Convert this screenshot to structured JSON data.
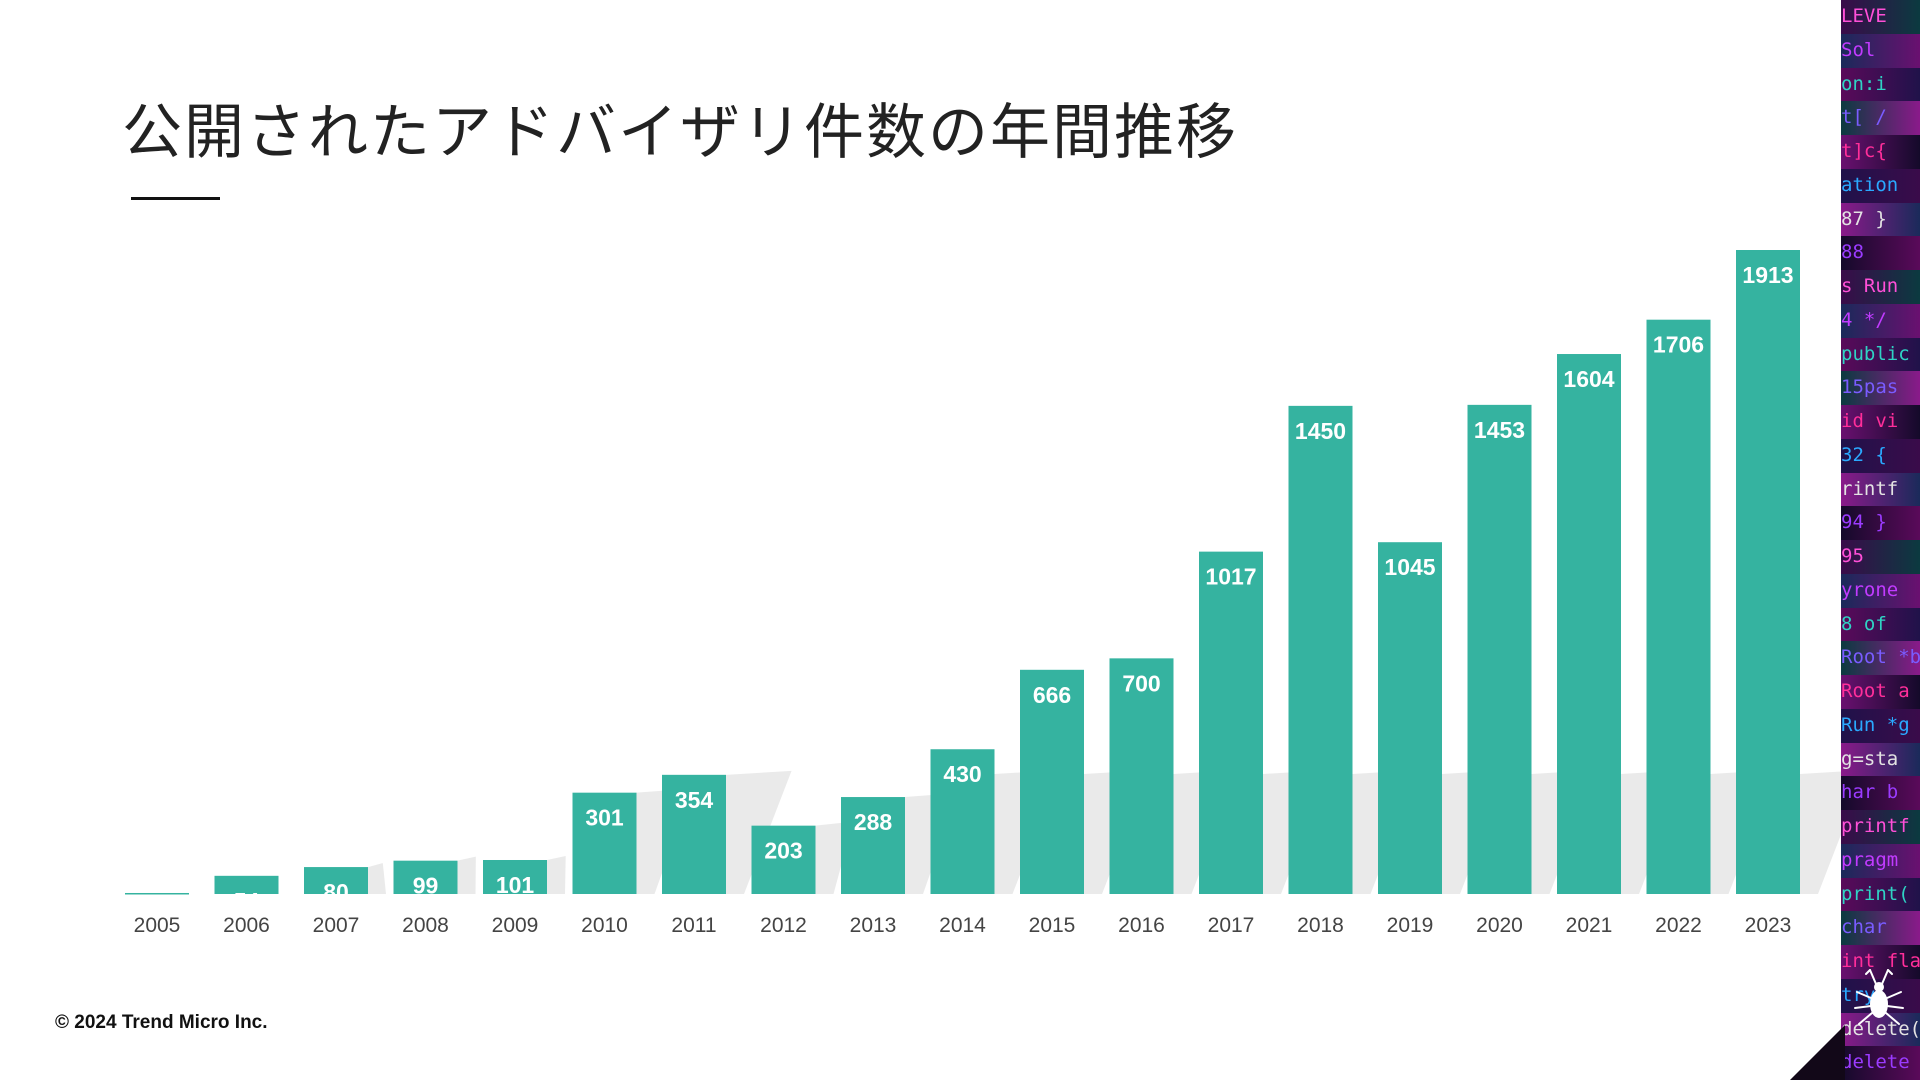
{
  "slide": {
    "title": "公開されたアドバイザリ件数の年間推移",
    "copyright": "© 2024 Trend Micro Inc."
  },
  "colors": {
    "bar": "#35b3a0",
    "label_inside": "#ffffff",
    "axis_text": "#444444",
    "title": "#222222",
    "shadow": "#d9d9d9"
  },
  "icons": {
    "logo": "beetle-icon"
  },
  "chart_data": {
    "type": "bar",
    "title": "",
    "xlabel": "",
    "ylabel": "",
    "grid": false,
    "ylim": [
      0,
      2000
    ],
    "categories": [
      "2005",
      "2006",
      "2007",
      "2008",
      "2009",
      "2010",
      "2011",
      "2012",
      "2013",
      "2014",
      "2015",
      "2016",
      "2017",
      "2018",
      "2019",
      "2020",
      "2021",
      "2022",
      "2023"
    ],
    "values": [
      3,
      54,
      80,
      99,
      101,
      301,
      354,
      203,
      288,
      430,
      666,
      700,
      1017,
      1450,
      1045,
      1453,
      1604,
      1706,
      1913
    ]
  },
  "side_strip": {
    "lines": [
      "LEVE",
      "Sol",
      "on:i",
      "t[ /",
      "t]c{",
      "ation",
      "87 }",
      "88",
      "s Run",
      "4 */",
      "public",
      "15pas",
      "id vi",
      "32 {",
      "rintf",
      "94 }",
      "95",
      "yrone",
      "8 of",
      "Root *b",
      "Root a",
      "Run *g",
      "g=sta",
      "har b",
      "printf",
      "pragm",
      "print(",
      "char",
      "int fla",
      "try(",
      "delete(",
      "delete"
    ]
  }
}
